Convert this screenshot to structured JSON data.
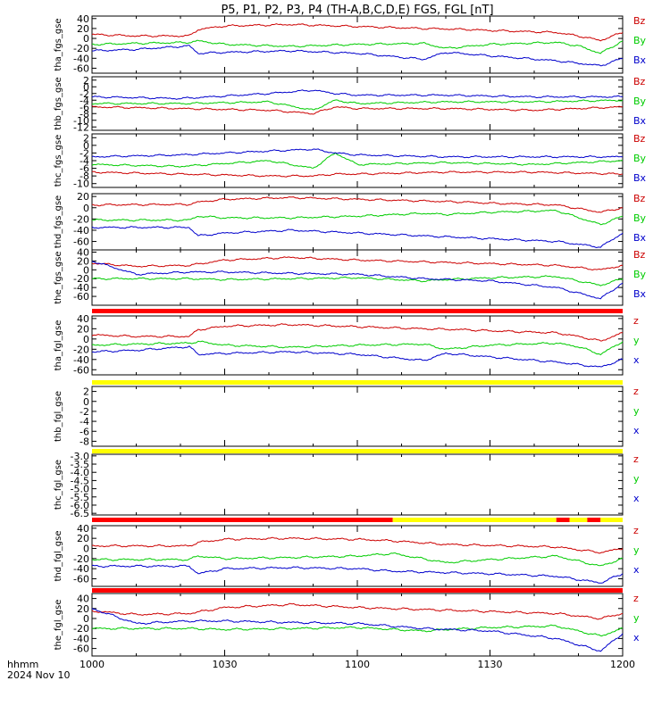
{
  "title": "P5, P1, P2, P3, P4 (TH-A,B,C,D,E) FGS, FGL [nT]",
  "xaxis": {
    "tick_labels": [
      "1000",
      "1030",
      "1100",
      "1130",
      "1200"
    ],
    "unit_label": "hhmm",
    "date_label": "2024 Nov 10"
  },
  "colors": {
    "x": "#0000cc",
    "y": "#00cc00",
    "z": "#cc0000",
    "flag_red": "#ff0000",
    "flag_yellow": "#ffff00"
  },
  "flags": {
    "tha": "red",
    "thb": "yellow",
    "thc": "yellow",
    "thd": [
      {
        "from": "1000",
        "to": "1108",
        "color": "red"
      },
      {
        "from": "1108",
        "to": "1145",
        "color": "yellow"
      },
      {
        "from": "1145",
        "to": "1148",
        "color": "red"
      },
      {
        "from": "1148",
        "to": "1152",
        "color": "yellow"
      },
      {
        "from": "1152",
        "to": "1155",
        "color": "red"
      },
      {
        "from": "1155",
        "to": "1200",
        "color": "yellow"
      }
    ],
    "the": "red"
  },
  "chart_data": [
    {
      "type": "line",
      "panel": "tha_fgs_gse",
      "ylabel": "tha_fgs_gse",
      "ylim": [
        -70,
        45
      ],
      "yticks": [
        "40",
        "20",
        "0",
        "-20",
        "-40",
        "-60"
      ],
      "legend": [
        "Bz",
        "By",
        "Bx"
      ],
      "series": [
        {
          "name": "Bz",
          "x": [
            "1000",
            "1010",
            "1022",
            "1024",
            "1030",
            "1045",
            "1100",
            "1115",
            "1125",
            "1130",
            "1145",
            "1150",
            "1155",
            "1200"
          ],
          "values": [
            8,
            5,
            5,
            18,
            25,
            28,
            24,
            20,
            18,
            16,
            12,
            5,
            -4,
            12
          ]
        },
        {
          "name": "By",
          "x": [
            "1000",
            "1010",
            "1022",
            "1024",
            "1030",
            "1045",
            "1100",
            "1115",
            "1120",
            "1130",
            "1145",
            "1150",
            "1155",
            "1200"
          ],
          "values": [
            -12,
            -10,
            -8,
            -5,
            -12,
            -16,
            -12,
            -10,
            -20,
            -12,
            -8,
            -15,
            -30,
            -5
          ]
        },
        {
          "name": "Bx",
          "x": [
            "1000",
            "1010",
            "1022",
            "1024",
            "1030",
            "1045",
            "1100",
            "1115",
            "1120",
            "1130",
            "1145",
            "1155",
            "1200"
          ],
          "values": [
            -25,
            -22,
            -15,
            -30,
            -28,
            -25,
            -30,
            -42,
            -28,
            -35,
            -45,
            -55,
            -40
          ]
        }
      ]
    },
    {
      "type": "line",
      "panel": "thb_fgs_gse",
      "ylabel": "thb_fgs_gse",
      "ylim": [
        -13,
        3
      ],
      "yticks": [
        "2",
        "0",
        "-2",
        "-4",
        "-6",
        "-8",
        "-10",
        "-12"
      ],
      "legend": [
        "Bz",
        "By",
        "Bx"
      ],
      "series": [
        {
          "name": "Bz",
          "x": [
            "1000",
            "1020",
            "1040",
            "1050",
            "1055",
            "1100",
            "1120",
            "1140",
            "1200"
          ],
          "values": [
            -6,
            -6.5,
            -7,
            -8,
            -6,
            -6.5,
            -6.5,
            -7,
            -6
          ]
        },
        {
          "name": "By",
          "x": [
            "1000",
            "1020",
            "1040",
            "1050",
            "1055",
            "1100",
            "1120",
            "1140",
            "1200"
          ],
          "values": [
            -5,
            -5,
            -4.5,
            -7,
            -4,
            -5,
            -4.5,
            -4.5,
            -4
          ]
        },
        {
          "name": "Bx",
          "x": [
            "1000",
            "1020",
            "1040",
            "1050",
            "1055",
            "1100",
            "1120",
            "1140",
            "1200"
          ],
          "values": [
            -3,
            -3.5,
            -2,
            -1,
            -2,
            -2.5,
            -2.5,
            -3,
            -3
          ]
        }
      ]
    },
    {
      "type": "line",
      "panel": "thc_fgs_gse",
      "ylabel": "thc_fgs_gse",
      "ylim": [
        -11,
        3
      ],
      "yticks": [
        "2",
        "0",
        "-2",
        "-4",
        "-6",
        "-8",
        "-10"
      ],
      "legend": [
        "Bz",
        "By",
        "Bx"
      ],
      "series": [
        {
          "name": "Bz",
          "x": [
            "1000",
            "1020",
            "1040",
            "1050",
            "1055",
            "1100",
            "1120",
            "1140",
            "1200"
          ],
          "values": [
            -7,
            -7.5,
            -8,
            -8,
            -7.5,
            -7.5,
            -7,
            -7,
            -7.5
          ]
        },
        {
          "name": "By",
          "x": [
            "1000",
            "1020",
            "1040",
            "1050",
            "1055",
            "1100",
            "1120",
            "1140",
            "1200"
          ],
          "values": [
            -5,
            -5.5,
            -4,
            -6,
            -2,
            -5,
            -4.5,
            -5,
            -4
          ]
        },
        {
          "name": "Bx",
          "x": [
            "1000",
            "1020",
            "1040",
            "1050",
            "1055",
            "1100",
            "1120",
            "1140",
            "1200"
          ],
          "values": [
            -3,
            -2.5,
            -1.5,
            -1,
            -2,
            -2.5,
            -3,
            -3,
            -3
          ]
        }
      ]
    },
    {
      "type": "line",
      "panel": "thd_fgs_gse",
      "ylabel": "thd_fgs_gse",
      "ylim": [
        -75,
        25
      ],
      "yticks": [
        "20",
        "0",
        "-20",
        "-40",
        "-60"
      ],
      "legend": [
        "Bz",
        "By",
        "Bx"
      ],
      "series": [
        {
          "name": "Bz",
          "x": [
            "1000",
            "1022",
            "1024",
            "1030",
            "1045",
            "1100",
            "1115",
            "1125",
            "1130",
            "1145",
            "1155",
            "1200"
          ],
          "values": [
            5,
            6,
            10,
            15,
            18,
            15,
            12,
            10,
            8,
            5,
            -8,
            0
          ]
        },
        {
          "name": "By",
          "x": [
            "1000",
            "1022",
            "1024",
            "1030",
            "1045",
            "1100",
            "1115",
            "1120",
            "1130",
            "1145",
            "1155",
            "1200"
          ],
          "values": [
            -22,
            -22,
            -15,
            -18,
            -18,
            -15,
            -10,
            -12,
            -8,
            -5,
            -30,
            -15
          ]
        },
        {
          "name": "Bx",
          "x": [
            "1000",
            "1022",
            "1024",
            "1030",
            "1045",
            "1100",
            "1115",
            "1130",
            "1145",
            "1155",
            "1200"
          ],
          "values": [
            -35,
            -35,
            -50,
            -45,
            -40,
            -45,
            -50,
            -55,
            -60,
            -70,
            -45
          ]
        }
      ]
    },
    {
      "type": "line",
      "panel": "the_fgs_gse",
      "ylabel": "the_fgs_gse",
      "ylim": [
        -80,
        45
      ],
      "yticks": [
        "40",
        "20",
        "0",
        "-20",
        "-40",
        "-60"
      ],
      "legend": [
        "Bz",
        "By",
        "Bx"
      ],
      "series": [
        {
          "name": "Bz",
          "x": [
            "1000",
            "1010",
            "1022",
            "1030",
            "1045",
            "1100",
            "1115",
            "1130",
            "1145",
            "1155",
            "1200"
          ],
          "values": [
            15,
            8,
            10,
            22,
            28,
            22,
            18,
            14,
            10,
            0,
            10
          ]
        },
        {
          "name": "By",
          "x": [
            "1000",
            "1010",
            "1022",
            "1030",
            "1045",
            "1100",
            "1115",
            "1120",
            "1130",
            "1145",
            "1155",
            "1200"
          ],
          "values": [
            -20,
            -20,
            -20,
            -22,
            -20,
            -18,
            -25,
            -22,
            -18,
            -15,
            -35,
            -20
          ]
        },
        {
          "name": "Bx",
          "x": [
            "1000",
            "1010",
            "1022",
            "1030",
            "1045",
            "1100",
            "1115",
            "1130",
            "1145",
            "1155",
            "1200"
          ],
          "values": [
            20,
            -10,
            -5,
            -5,
            -8,
            -10,
            -20,
            -25,
            -40,
            -65,
            -30
          ]
        }
      ]
    },
    {
      "type": "line",
      "panel": "tha_fgl_gse",
      "ylabel": "tha_fgl_gse",
      "ylim": [
        -70,
        45
      ],
      "yticks": [
        "40",
        "20",
        "0",
        "-20",
        "-40",
        "-60"
      ],
      "legend": [
        "z",
        "y",
        "x"
      ],
      "series": [
        {
          "name": "z",
          "x": [
            "1000",
            "1010",
            "1022",
            "1024",
            "1030",
            "1045",
            "1100",
            "1115",
            "1125",
            "1130",
            "1145",
            "1150",
            "1155",
            "1200"
          ],
          "values": [
            8,
            5,
            5,
            18,
            25,
            28,
            24,
            20,
            18,
            16,
            12,
            5,
            -4,
            12
          ]
        },
        {
          "name": "y",
          "x": [
            "1000",
            "1010",
            "1022",
            "1024",
            "1030",
            "1045",
            "1100",
            "1115",
            "1120",
            "1130",
            "1145",
            "1150",
            "1155",
            "1200"
          ],
          "values": [
            -12,
            -10,
            -8,
            -5,
            -12,
            -16,
            -12,
            -10,
            -20,
            -12,
            -8,
            -15,
            -30,
            -5
          ]
        },
        {
          "name": "x",
          "x": [
            "1000",
            "1010",
            "1022",
            "1024",
            "1030",
            "1045",
            "1100",
            "1115",
            "1120",
            "1130",
            "1145",
            "1155",
            "1200"
          ],
          "values": [
            -25,
            -22,
            -15,
            -30,
            -28,
            -25,
            -30,
            -42,
            -28,
            -35,
            -45,
            -55,
            -40
          ]
        }
      ]
    },
    {
      "type": "line",
      "panel": "thb_fgl_gse",
      "ylabel": "thb_fgl_gse",
      "ylim": [
        -9,
        3
      ],
      "yticks": [
        "2",
        "0",
        "-2",
        "-4",
        "-6",
        "-8"
      ],
      "legend": [
        "z",
        "y",
        "x"
      ],
      "series": []
    },
    {
      "type": "line",
      "panel": "thc_fgl_gse",
      "ylabel": "thc_fgl_gse",
      "ylim": [
        -6.6,
        -2.9
      ],
      "yticks": [
        "-3.0",
        "-3.5",
        "-4.0",
        "-4.5",
        "-5.0",
        "-5.5",
        "-6.0",
        "-6.5"
      ],
      "legend": [
        "z",
        "y",
        "x"
      ],
      "series": []
    },
    {
      "type": "line",
      "panel": "thd_fgl_gse",
      "ylabel": "thd_fgl_gse",
      "ylim": [
        -75,
        45
      ],
      "yticks": [
        "40",
        "20",
        "0",
        "-20",
        "-40",
        "-60"
      ],
      "legend": [
        "z",
        "y",
        "x"
      ],
      "series": [
        {
          "name": "z",
          "x": [
            "1000",
            "1022",
            "1024",
            "1030",
            "1045",
            "1100",
            "1108",
            "1120",
            "1130",
            "1145",
            "1155",
            "1200"
          ],
          "values": [
            5,
            5,
            12,
            18,
            20,
            18,
            15,
            8,
            6,
            3,
            -8,
            0
          ]
        },
        {
          "name": "y",
          "x": [
            "1000",
            "1022",
            "1024",
            "1030",
            "1045",
            "1100",
            "1108",
            "1120",
            "1130",
            "1145",
            "1155",
            "1200"
          ],
          "values": [
            -22,
            -22,
            -15,
            -20,
            -18,
            -15,
            -10,
            -28,
            -22,
            -15,
            -35,
            -20
          ]
        },
        {
          "name": "x",
          "x": [
            "1000",
            "1022",
            "1024",
            "1030",
            "1045",
            "1100",
            "1108",
            "1130",
            "1145",
            "1155",
            "1200"
          ],
          "values": [
            -35,
            -35,
            -50,
            -40,
            -38,
            -40,
            -45,
            -50,
            -55,
            -68,
            -50
          ]
        }
      ]
    },
    {
      "type": "line",
      "panel": "the_fgl_gse",
      "ylabel": "the_fgl_gse",
      "ylim": [
        -75,
        50
      ],
      "yticks": [
        "40",
        "20",
        "0",
        "-20",
        "-40",
        "-60"
      ],
      "legend": [
        "z",
        "y",
        "x"
      ],
      "series": [
        {
          "name": "z",
          "x": [
            "1000",
            "1010",
            "1022",
            "1030",
            "1045",
            "1100",
            "1115",
            "1130",
            "1145",
            "1155",
            "1200"
          ],
          "values": [
            15,
            8,
            10,
            22,
            28,
            22,
            18,
            14,
            10,
            0,
            10
          ]
        },
        {
          "name": "y",
          "x": [
            "1000",
            "1010",
            "1022",
            "1030",
            "1045",
            "1100",
            "1115",
            "1120",
            "1130",
            "1145",
            "1155",
            "1200"
          ],
          "values": [
            -20,
            -20,
            -20,
            -22,
            -20,
            -18,
            -25,
            -22,
            -18,
            -15,
            -35,
            -20
          ]
        },
        {
          "name": "x",
          "x": [
            "1000",
            "1010",
            "1022",
            "1030",
            "1045",
            "1100",
            "1115",
            "1130",
            "1145",
            "1155",
            "1200"
          ],
          "values": [
            20,
            -10,
            -5,
            -5,
            -8,
            -10,
            -20,
            -25,
            -40,
            -65,
            -30
          ]
        }
      ]
    }
  ]
}
